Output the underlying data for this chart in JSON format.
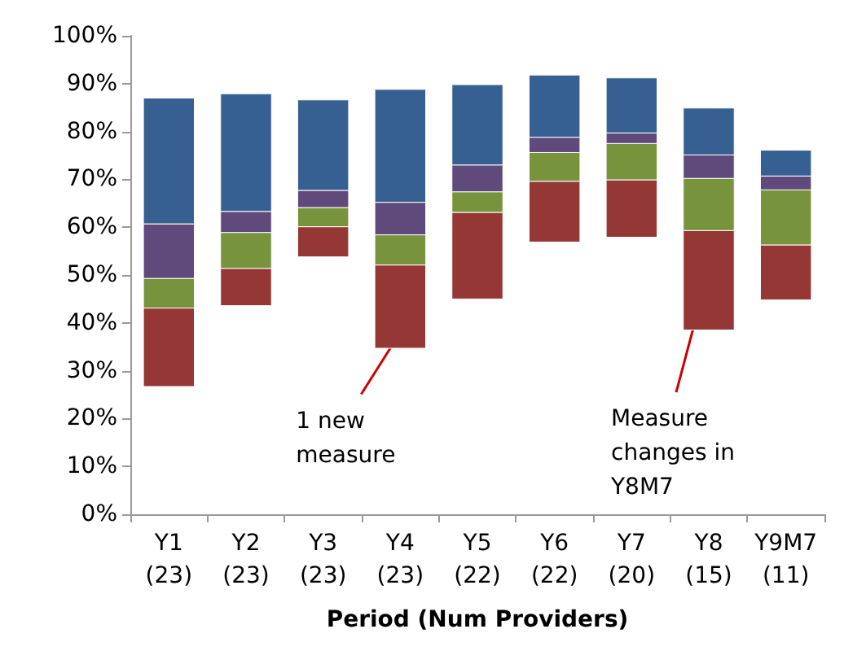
{
  "chart_data": {
    "type": "bar",
    "xlabel": "Period (Num Providers)",
    "categories": [
      "Y1\n(23)",
      "Y2\n(23)",
      "Y3\n(23)",
      "Y4\n(23)",
      "Y5\n(22)",
      "Y6\n(22)",
      "Y7\n(20)",
      "Y8\n(15)",
      "Y9M7\n(11)"
    ],
    "series": [
      {
        "color": "#953735",
        "base": [
          26.7,
          43.6,
          53.8,
          34.7,
          45.0,
          56.9,
          57.9,
          38.5,
          44.8
        ],
        "values": [
          16.4,
          7.8,
          6.3,
          17.4,
          18.1,
          12.7,
          12.0,
          20.8,
          11.5
        ]
      },
      {
        "color": "#77933c",
        "base": [
          43.1,
          51.4,
          60.1,
          52.1,
          63.1,
          69.6,
          69.9,
          59.3,
          56.3
        ],
        "values": [
          6.2,
          7.5,
          4.0,
          6.3,
          4.3,
          6.0,
          7.6,
          10.9,
          11.5
        ]
      },
      {
        "color": "#604a7b",
        "base": [
          49.3,
          58.9,
          64.1,
          58.4,
          67.4,
          75.6,
          77.5,
          70.2,
          67.8
        ],
        "values": [
          11.4,
          4.4,
          3.6,
          6.8,
          5.6,
          3.2,
          2.2,
          4.9,
          2.9
        ]
      },
      {
        "color": "#376092",
        "base": [
          60.7,
          63.3,
          67.7,
          65.2,
          73.0,
          78.8,
          79.7,
          75.1,
          70.7
        ],
        "values": [
          26.3,
          24.6,
          18.9,
          23.6,
          16.8,
          13.0,
          11.5,
          9.8,
          5.4
        ]
      }
    ],
    "ylim": [
      0,
      100
    ],
    "yticks": [
      {
        "value": 0,
        "label": "0%"
      },
      {
        "value": 10,
        "label": "10%"
      },
      {
        "value": 20,
        "label": "20%"
      },
      {
        "value": 30,
        "label": "30%"
      },
      {
        "value": 40,
        "label": "40%"
      },
      {
        "value": 50,
        "label": "50%"
      },
      {
        "value": 60,
        "label": "60%"
      },
      {
        "value": 70,
        "label": "70%"
      },
      {
        "value": 80,
        "label": "80%"
      },
      {
        "value": 90,
        "label": "90%"
      },
      {
        "value": 100,
        "label": "100%"
      }
    ],
    "annotations": [
      "1 new\nmeasure",
      "Measure\nchanges in\nY8M7"
    ]
  }
}
